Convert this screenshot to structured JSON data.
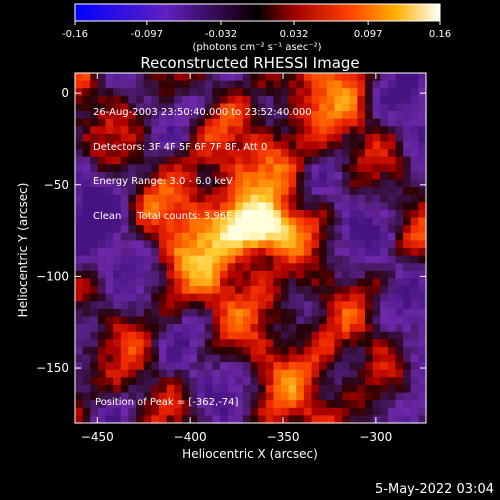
{
  "colorbar": {
    "tick_labels": [
      "-0.16",
      "-0.097",
      "-0.032",
      "0.032",
      "0.097",
      "0.16"
    ],
    "tick_values": [
      -0.16,
      -0.097,
      -0.032,
      0.032,
      0.097,
      0.16
    ],
    "range": [
      -0.16,
      0.16
    ],
    "unit_label": "(photons cm⁻² s⁻¹ asec⁻²)",
    "colormap": "blue-purple-black-red-yellow-white"
  },
  "chart_data": {
    "type": "heatmap",
    "title": "Reconstructed RHESSI Image",
    "xlabel": "Heliocentric X (arcsec)",
    "ylabel": "Heliocentric Y (arcsec)",
    "xlim": [
      -462,
      -273
    ],
    "ylim": [
      -180,
      11
    ],
    "xticks": [
      -450,
      -400,
      -350,
      -300
    ],
    "yticks": [
      0,
      -50,
      -100,
      -150
    ],
    "xtick_labels": [
      "−450",
      "−400",
      "−350",
      "−300"
    ],
    "ytick_labels": [
      "0",
      "−50",
      "−100",
      "−150"
    ],
    "peak": {
      "x": -362,
      "y": -74,
      "value": 0.16
    },
    "info_lines": [
      "26-Aug-2003 23:50:40.000 to 23:52:40.000",
      "Detectors: 3F 4F 5F 6F 7F 8F, Att 0",
      "Energy Range: 3.0 - 6.0 keV",
      "Clean     Total counts: 3.96E+03"
    ],
    "peak_text": "Position of Peak = [-362,-74]"
  },
  "footer": {
    "timestamp": "5-May-2022 03:04"
  }
}
